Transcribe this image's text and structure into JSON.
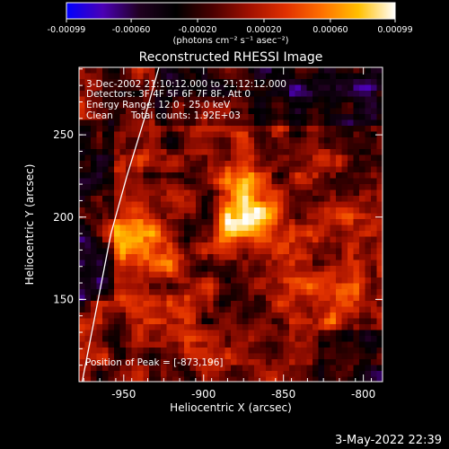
{
  "colorbar": {
    "tick_labels": [
      "-0.00099",
      "-0.00060",
      "-0.00020",
      "0.00020",
      "0.00060",
      "0.00099"
    ],
    "unit_label": "(photons cm⁻² s⁻¹ asec⁻²)",
    "gradient_colors": [
      "#0000ff",
      "#4b00b5",
      "#200020",
      "#000000",
      "#4a0000",
      "#a01000",
      "#e03000",
      "#ff7000",
      "#ffc000",
      "#ffffff"
    ]
  },
  "plot": {
    "title": "Reconstructed RHESSI Image",
    "info_lines": [
      "3-Dec-2002 21:10:12.000 to 21:12:12.000",
      "Detectors: 3F 4F 5F 6F 7F 8F, Att 0",
      "Energy Range: 12.0 - 25.0 keV",
      "Clean      Total counts: 1.92E+03"
    ],
    "peak_label": "Position of Peak = [-873,196]",
    "xlabel": "Heliocentric X (arcsec)",
    "ylabel": "Heliocentric Y (arcsec)",
    "x_ticks": [
      "-950",
      "-900",
      "-850",
      "-800"
    ],
    "y_ticks": [
      "150",
      "200",
      "250"
    ]
  },
  "chart_data": {
    "type": "heatmap",
    "title": "Reconstructed RHESSI Image",
    "xlabel": "Heliocentric X (arcsec)",
    "ylabel": "Heliocentric Y (arcsec)",
    "xlim": [
      -978,
      -788
    ],
    "ylim": [
      100,
      291
    ],
    "x_ticks": [
      -950,
      -900,
      -850,
      -800
    ],
    "y_ticks": [
      150,
      200,
      250
    ],
    "colorbar_range": [
      -0.00099,
      0.00099
    ],
    "colorbar_ticks": [
      -0.00099,
      -0.0006,
      -0.0002,
      0.0002,
      0.0006,
      0.00099
    ],
    "peak": {
      "x": -873,
      "y": 196
    },
    "sources": [
      {
        "x": -873,
        "y": 196,
        "value": 0.00099
      },
      {
        "x": -945,
        "y": 190,
        "value": 0.0007
      },
      {
        "x": -875,
        "y": 218,
        "value": 0.0005
      },
      {
        "x": -845,
        "y": 162,
        "value": 0.00045
      },
      {
        "x": -815,
        "y": 150,
        "value": 0.0004
      },
      {
        "x": -930,
        "y": 175,
        "value": 0.00035
      },
      {
        "x": -820,
        "y": 200,
        "value": 0.00035
      },
      {
        "x": -905,
        "y": 265,
        "value": 0.0003
      }
    ],
    "limb_arc": [
      [
        -928,
        291
      ],
      [
        -937,
        260
      ],
      [
        -948,
        225
      ],
      [
        -958,
        190
      ],
      [
        -966,
        150
      ],
      [
        -973,
        115
      ],
      [
        -976,
        100
      ]
    ]
  },
  "footer": {
    "timestamp": "3-May-2022 22:39"
  }
}
